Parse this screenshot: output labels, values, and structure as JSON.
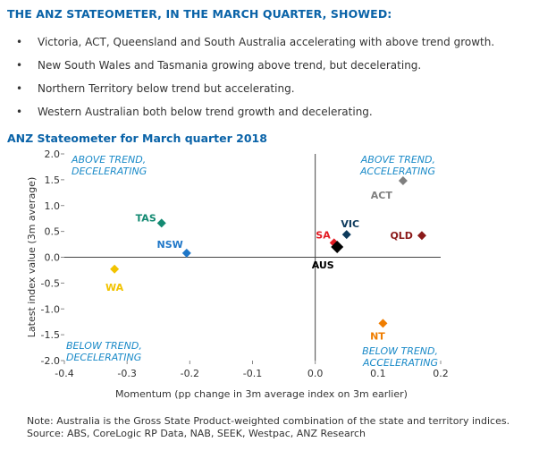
{
  "heading": "THE ANZ STATEOMETER, IN THE MARCH QUARTER, SHOWED:",
  "bullets": [
    "Victoria, ACT, Queensland and South Australia accelerating with above trend growth.",
    "New South Wales and Tasmania growing above trend, but decelerating.",
    "Northern Territory below trend but accelerating.",
    "Western Australian both below trend growth and decelerating."
  ],
  "bullet_glyph": "•",
  "chart_title": "ANZ Stateometer for March quarter 2018",
  "footer": {
    "note": "Note: Australia is the Gross State Product-weighted combination of the state and territory indices.",
    "source": "Source: ABS, CoreLogic RP Data, NAB, SEEK, Westpac, ANZ Research"
  },
  "chart_data": {
    "type": "scatter",
    "xlabel": "Momentum (pp change in 3m average index on 3m earlier)",
    "ylabel": "Latest index value (3m average)",
    "xlim": [
      -0.4,
      0.2
    ],
    "ylim": [
      -2.0,
      2.0
    ],
    "xticks": [
      "-0.4",
      "-0.3",
      "-0.2",
      "-0.1",
      "0.0",
      "0.1",
      "0.2"
    ],
    "yticks": [
      "2.0",
      "1.5",
      "1.0",
      "0.5",
      "0.0",
      "-0.5",
      "-1.0",
      "-1.5",
      "-2.0"
    ],
    "grid": false,
    "quadrants": [
      {
        "lines": [
          "ABOVE TREND,",
          "DECELERATING"
        ],
        "position": "top-left"
      },
      {
        "lines": [
          "ABOVE TREND,",
          "ACCELERATING"
        ],
        "position": "top-right"
      },
      {
        "lines": [
          "BELOW TREND,",
          "DECELERATING"
        ],
        "position": "bottom-left"
      },
      {
        "lines": [
          "BELOW TREND,",
          "ACCELERATING"
        ],
        "position": "bottom-right"
      }
    ],
    "points": [
      {
        "label": "ACT",
        "x": 0.14,
        "y": 1.48,
        "color": "#7f7f7f"
      },
      {
        "label": "VIC",
        "x": 0.05,
        "y": 0.44,
        "color": "#0d3a5c"
      },
      {
        "label": "QLD",
        "x": 0.17,
        "y": 0.42,
        "color": "#8b1a1a"
      },
      {
        "label": "SA",
        "x": 0.03,
        "y": 0.28,
        "color": "#e31b23"
      },
      {
        "label": "AUS",
        "x": 0.035,
        "y": 0.2,
        "color": "#000000"
      },
      {
        "label": "TAS",
        "x": -0.245,
        "y": 0.66,
        "color": "#138a72"
      },
      {
        "label": "NSW",
        "x": -0.205,
        "y": 0.08,
        "color": "#1f77c8"
      },
      {
        "label": "WA",
        "x": -0.32,
        "y": -0.23,
        "color": "#f2c300"
      },
      {
        "label": "NT",
        "x": 0.108,
        "y": -1.28,
        "color": "#ef7d00"
      }
    ]
  }
}
